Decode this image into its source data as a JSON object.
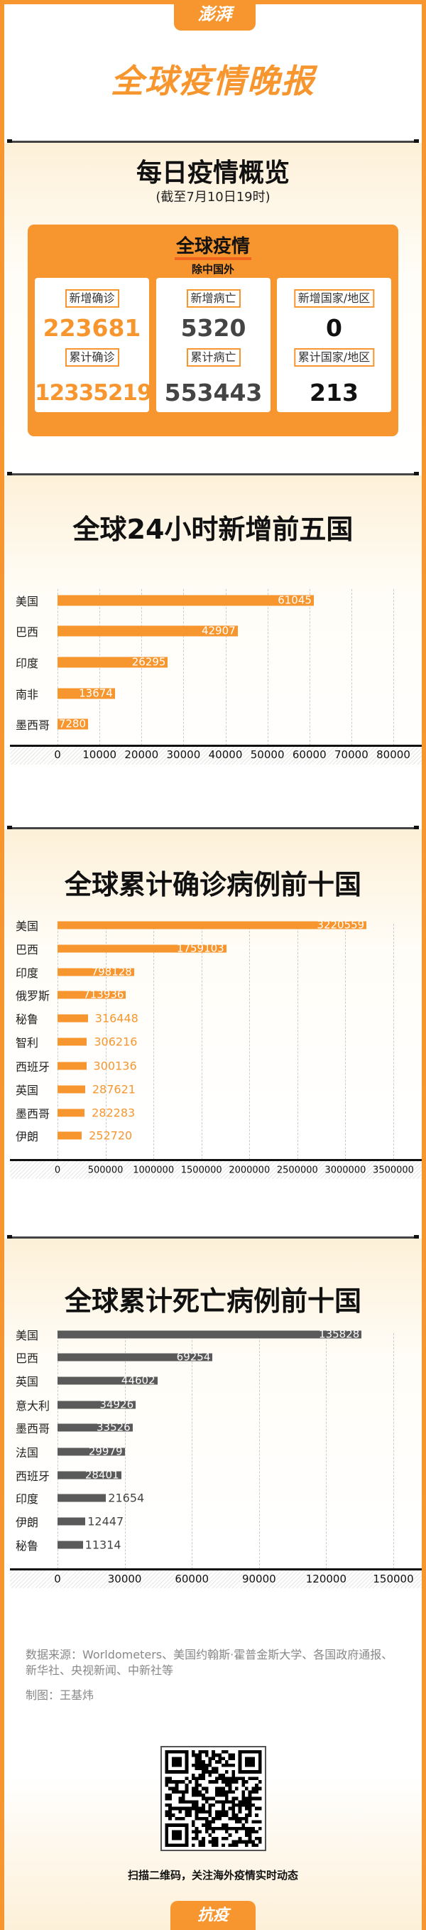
{
  "header": {
    "logo_text": "澎湃",
    "title": "全球疫情晚报"
  },
  "overview": {
    "title": "每日疫情概览",
    "subtitle": "(截至7月10日19时)",
    "box_title": "全球疫情",
    "box_subtitle": "除中国外",
    "cards": [
      {
        "label1": "新增确诊",
        "value1": "223681",
        "label2": "累计确诊",
        "value2": "12335219"
      },
      {
        "label1": "新增病亡",
        "value1": "5320",
        "label2": "累计病亡",
        "value2": "553443"
      },
      {
        "label1": "新增国家/地区",
        "value1": "0",
        "label2": "累计国家/地区",
        "value2": "213"
      }
    ],
    "colors": {
      "accent": "#f7962f",
      "death": "#444444"
    }
  },
  "chart_data": [
    {
      "type": "bar",
      "title": "全球24小时新增前五国",
      "categories": [
        "美国",
        "巴西",
        "印度",
        "南非",
        "墨西哥"
      ],
      "values": [
        61045,
        42907,
        26295,
        13674,
        7280
      ],
      "xlim": [
        0,
        80000
      ],
      "ticks": [
        "0",
        "10000",
        "20000",
        "30000",
        "40000",
        "50000",
        "60000",
        "70000",
        "80000"
      ],
      "color": "#f7962f",
      "grid": true
    },
    {
      "type": "bar",
      "title": "全球累计确诊病例前十国",
      "categories": [
        "美国",
        "巴西",
        "印度",
        "俄罗斯",
        "秘鲁",
        "智利",
        "西班牙",
        "英国",
        "墨西哥",
        "伊朗"
      ],
      "values": [
        3220559,
        1759103,
        798128,
        713936,
        316448,
        306216,
        300136,
        287621,
        282283,
        252720
      ],
      "xlim": [
        0,
        3500000
      ],
      "ticks": [
        "0",
        "500000",
        "1000000",
        "1500000",
        "2000000",
        "2500000",
        "3000000",
        "3500000"
      ],
      "color": "#f7962f",
      "grid": true
    },
    {
      "type": "bar",
      "title": "全球累计死亡病例前十国",
      "categories": [
        "美国",
        "巴西",
        "英国",
        "意大利",
        "墨西哥",
        "法国",
        "西班牙",
        "印度",
        "伊朗",
        "秘鲁"
      ],
      "values": [
        135828,
        69254,
        44602,
        34926,
        33526,
        29979,
        28401,
        21654,
        12447,
        11314
      ],
      "xlim": [
        0,
        150000
      ],
      "ticks": [
        "0",
        "30000",
        "60000",
        "90000",
        "120000",
        "150000"
      ],
      "color": "#5a5a5a",
      "grid": true
    }
  ],
  "footer": {
    "source": "数据来源：Worldometers、美国约翰斯·霍普金斯大学、各国政府通报、新华社、央视新闻、中新社等",
    "credit": "制图：王基炜",
    "qr_caption": "扫描二维码，关注海外疫情实时动态",
    "tab_label": "抗疫"
  }
}
